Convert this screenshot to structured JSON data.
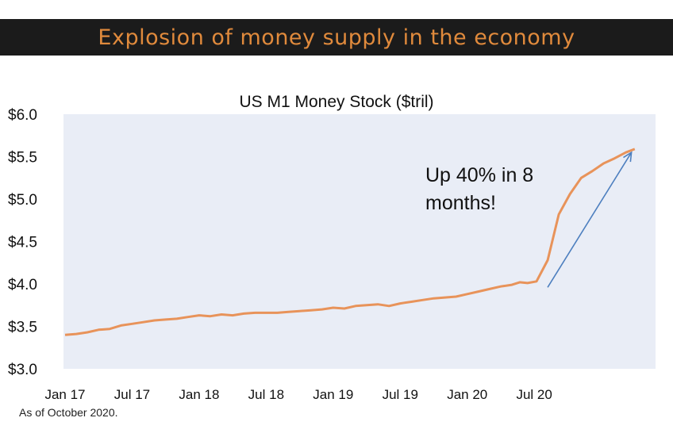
{
  "banner": {
    "title": "Explosion of money supply in the economy"
  },
  "footnote": "As of October 2020.",
  "colors": {
    "banner_bg": "#1b1b1b",
    "banner_text": "#e08a3c",
    "plot_bg": "#e9edf6",
    "line": "#e8935a",
    "arrow": "#4d7fbf"
  },
  "chart_data": {
    "type": "line",
    "title": "US M1 Money Stock ($tril)",
    "xlabel": "",
    "ylabel": "",
    "ylim": [
      3.0,
      6.0
    ],
    "yticks": [
      "$3.0",
      "$3.5",
      "$4.0",
      "$4.5",
      "$5.0",
      "$5.5",
      "$6.0"
    ],
    "ytick_values": [
      3.0,
      3.5,
      4.0,
      4.5,
      5.0,
      5.5,
      6.0
    ],
    "xticks": [
      "Jan 17",
      "Jul 17",
      "Jan 18",
      "Jul 18",
      "Jan 19",
      "Jul 19",
      "Jan 20",
      "Jul 20"
    ],
    "xtick_months": [
      0,
      6,
      12,
      18,
      24,
      30,
      36,
      42
    ],
    "grid": false,
    "series": [
      {
        "values": [
          3.4,
          3.41,
          3.43,
          3.46,
          3.47,
          3.51,
          3.53,
          3.55,
          3.57,
          3.58,
          3.59,
          3.61,
          3.63,
          3.62,
          3.64,
          3.63,
          3.65,
          3.66,
          3.66,
          3.66,
          3.67,
          3.68,
          3.69,
          3.7,
          3.72,
          3.71,
          3.74,
          3.75,
          3.76,
          3.74,
          3.77,
          3.79,
          3.81,
          3.83,
          3.84,
          3.85,
          3.88,
          3.91,
          3.94,
          3.97,
          3.99,
          4.02,
          4.01,
          4.03,
          4.28,
          4.82,
          5.06,
          5.25,
          5.33,
          5.42,
          5.48,
          5.55,
          5.59
        ],
        "months": [
          0,
          1,
          2,
          3,
          4,
          5,
          6,
          7,
          8,
          9,
          10,
          11,
          12,
          13,
          14,
          15,
          16,
          17,
          18,
          19,
          20,
          21,
          22,
          23,
          24,
          25,
          26,
          27,
          28,
          29,
          30,
          31,
          32,
          33,
          34,
          35,
          36,
          37,
          38,
          39,
          40,
          40.7,
          41.4,
          42.2,
          43.2,
          44.2,
          45.2,
          46.2,
          47.2,
          48.2,
          49.2,
          50.2,
          51.0
        ]
      }
    ],
    "annotation": {
      "text_lines": [
        "Up 40% in 8",
        "months!"
      ]
    },
    "arrow": {
      "from": [
        43.2,
        3.96
      ],
      "to": [
        50.7,
        5.55
      ]
    }
  }
}
